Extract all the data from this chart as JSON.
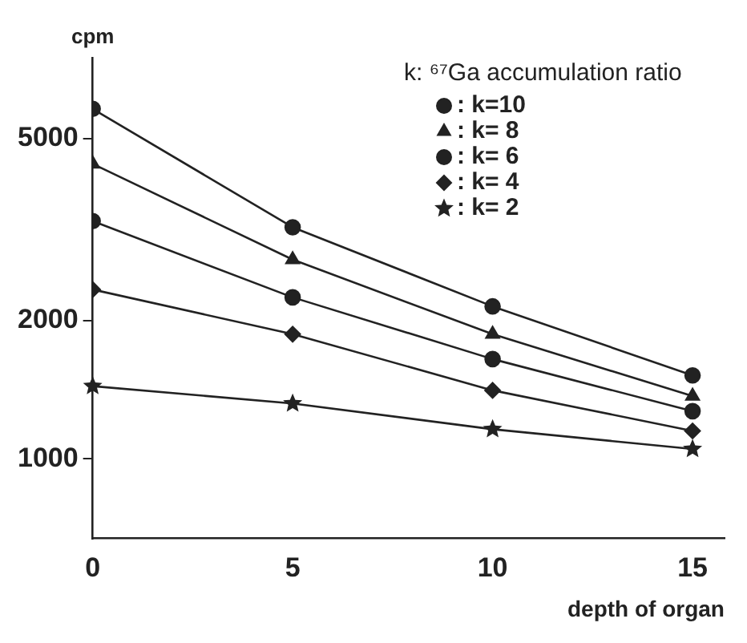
{
  "chart_data": {
    "type": "line",
    "xlabel": "depth of organ",
    "ylabel": "cpm",
    "legend_title": "k: ⁶⁷Ga accumulation ratio",
    "x": [
      0,
      5,
      10,
      15
    ],
    "series": [
      {
        "name": ": k=10",
        "color": "#222222",
        "marker": "circle",
        "values": [
          5800,
          3200,
          2150,
          1520
        ]
      },
      {
        "name": ": k= 8",
        "color": "#222222",
        "marker": "triangle",
        "values": [
          4400,
          2720,
          1870,
          1370
        ]
      },
      {
        "name": ": k= 6",
        "color": "#222222",
        "marker": "circle",
        "values": [
          3300,
          2250,
          1650,
          1270
        ]
      },
      {
        "name": ": k= 4",
        "color": "#222222",
        "marker": "diamond",
        "values": [
          2340,
          1870,
          1410,
          1150
        ]
      },
      {
        "name": ": k= 2",
        "color": "#222222",
        "marker": "star",
        "values": [
          1440,
          1320,
          1160,
          1050
        ]
      }
    ],
    "xlim": [
      0,
      15.8
    ],
    "xticks": [
      0,
      5,
      10,
      15
    ],
    "ylim": [
      670,
      7500
    ],
    "yticks": [
      1000,
      2000,
      5000
    ],
    "log": true,
    "grid": false,
    "legend": "top right",
    "line_style": "solid"
  }
}
